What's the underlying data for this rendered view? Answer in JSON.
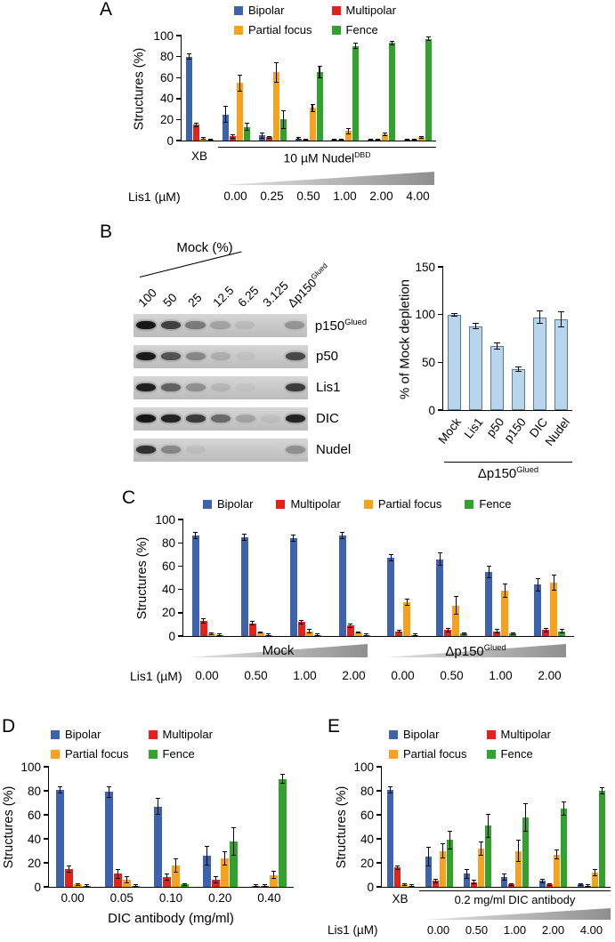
{
  "colors": {
    "bipolar": "#3E63AD",
    "multipolar": "#E2231B",
    "partial_focus": "#F6A21C",
    "fence": "#33A12E",
    "depletion_fill": "#B9D5EC",
    "depletion_border": "#4F7DA9"
  },
  "legend_items": [
    {
      "key": "bipolar",
      "label": "Bipolar"
    },
    {
      "key": "multipolar",
      "label": "Multipolar"
    },
    {
      "key": "partial_focus",
      "label": "Partial focus"
    },
    {
      "key": "fence",
      "label": "Fence"
    }
  ],
  "panels": {
    "a": {
      "letter": "A",
      "ylabel": "Structures (%)",
      "xb": "XB",
      "treatment_base": "10 µM Nudel",
      "treatment_sup": "DBD",
      "xaxis": "Lis1 (µM)"
    },
    "b": {
      "letter": "B",
      "ylabel": "% of Mock depletion",
      "bracket_base": "Δp150",
      "bracket_sup": "Glued",
      "blot": {
        "title": "Mock (%)",
        "lanes": [
          "100",
          "50",
          "25",
          "12.5",
          "6.25",
          "3.125"
        ],
        "delta_base": "Δp150",
        "delta_sup": "Glued",
        "rows": [
          {
            "label": "p150",
            "sup": "Glued",
            "bands": [
              0.95,
              0.72,
              0.42,
              0.2,
              0.08,
              0.02,
              0.28
            ]
          },
          {
            "label": "p50",
            "bands": [
              0.92,
              0.62,
              0.35,
              0.14,
              0.04,
              0,
              0.68
            ]
          },
          {
            "label": "Lis1",
            "bands": [
              0.9,
              0.55,
              0.3,
              0.1,
              0.03,
              0,
              0.75
            ]
          },
          {
            "label": "DIC",
            "bands": [
              0.95,
              0.88,
              0.75,
              0.5,
              0.2,
              0.05,
              0.88
            ]
          },
          {
            "label": "Nudel",
            "bands": [
              0.8,
              0.35,
              0.06,
              0,
              0,
              0,
              0.3
            ]
          }
        ]
      }
    },
    "c": {
      "letter": "C",
      "ylabel": "Structures (%)",
      "mock_label": "Mock",
      "delta_base": "Δp150",
      "delta_sup": "Glued",
      "xaxis": "Lis1 (µM)"
    },
    "d": {
      "letter": "D",
      "ylabel": "Structures (%)",
      "xaxis": "DIC antibody (mg/ml)"
    },
    "e": {
      "letter": "E",
      "ylabel": "Structures (%)",
      "xb": "XB",
      "treatment": "0.2 mg/ml DIC antibody",
      "xaxis": "Lis1 (µM)"
    }
  },
  "chart_data": [
    {
      "id": "panel-a",
      "type": "bar",
      "title": "",
      "xlabel": "Lis1 (µM)",
      "ylabel": "Structures (%)",
      "ylim": [
        0,
        100
      ],
      "yticks": [
        0,
        20,
        40,
        60,
        80,
        100
      ],
      "categories": [
        "XB",
        "0.00",
        "0.25",
        "0.50",
        "1.00",
        "2.00",
        "4.00"
      ],
      "sections": [
        {
          "label": "XB",
          "categories": [
            0,
            0
          ]
        },
        {
          "label": "10 µM NudelDBD",
          "categories": [
            1,
            6
          ]
        }
      ],
      "legend_position": "top",
      "series": [
        {
          "name": "Bipolar",
          "color_key": "bipolar",
          "values": [
            80,
            25,
            5,
            2,
            1,
            1,
            1
          ],
          "errors": [
            3,
            8,
            3,
            1,
            1,
            1,
            1
          ]
        },
        {
          "name": "Multipolar",
          "color_key": "multipolar",
          "values": [
            15,
            4,
            3,
            1,
            1,
            1,
            1
          ],
          "errors": [
            2,
            2,
            1,
            1,
            1,
            1,
            1
          ]
        },
        {
          "name": "Partial focus",
          "color_key": "partial_focus",
          "values": [
            2,
            55,
            65,
            31,
            9,
            6,
            3
          ],
          "errors": [
            1,
            8,
            10,
            4,
            3,
            2,
            1
          ]
        },
        {
          "name": "Fence",
          "color_key": "fence",
          "values": [
            1,
            13,
            20,
            65,
            90,
            93,
            97
          ],
          "errors": [
            1,
            4,
            9,
            6,
            3,
            2,
            2
          ]
        }
      ]
    },
    {
      "id": "panel-b",
      "type": "bar",
      "title": "",
      "xlabel": "",
      "ylabel": "% of Mock depletion",
      "ylim": [
        0,
        150
      ],
      "yticks": [
        0,
        50,
        100,
        150
      ],
      "categories": [
        "Mock",
        "Lis1",
        "p50",
        "p150",
        "DIC",
        "Nudel"
      ],
      "sections": [
        {
          "label": "Mock",
          "categories": [
            0,
            0
          ]
        },
        {
          "label": "Δp150Glued",
          "categories": [
            1,
            5
          ]
        }
      ],
      "series": [
        {
          "name": "% of Mock depletion",
          "color_key": "depletion_fill",
          "border_key": "depletion_border",
          "values": [
            100,
            88,
            67,
            43,
            97,
            95
          ],
          "errors": [
            2,
            3,
            4,
            3,
            7,
            8
          ]
        }
      ]
    },
    {
      "id": "panel-c",
      "type": "bar",
      "title": "",
      "xlabel": "Lis1 (µM)",
      "ylabel": "Structures (%)",
      "ylim": [
        0,
        100
      ],
      "yticks": [
        0,
        20,
        40,
        60,
        80,
        100
      ],
      "categories": [
        "0.00",
        "0.50",
        "1.00",
        "2.00",
        "0.00",
        "0.50",
        "1.00",
        "2.00"
      ],
      "sections": [
        {
          "label": "Mock",
          "categories": [
            0,
            3
          ]
        },
        {
          "label": "Δp150Glued",
          "categories": [
            4,
            7
          ]
        }
      ],
      "legend_position": "top",
      "series": [
        {
          "name": "Bipolar",
          "color_key": "bipolar",
          "values": [
            86,
            85,
            84,
            86,
            67,
            66,
            55,
            44
          ],
          "errors": [
            3,
            3,
            3,
            3,
            3,
            6,
            5,
            6
          ]
        },
        {
          "name": "Multipolar",
          "color_key": "multipolar",
          "values": [
            13,
            11,
            12,
            9,
            4,
            5,
            4,
            5
          ],
          "errors": [
            2,
            2,
            2,
            2,
            1,
            2,
            2,
            2
          ]
        },
        {
          "name": "Partial focus",
          "color_key": "partial_focus",
          "values": [
            2,
            3,
            4,
            3,
            29,
            26,
            39,
            46
          ],
          "errors": [
            1,
            1,
            2,
            1,
            3,
            8,
            6,
            7
          ]
        },
        {
          "name": "Fence",
          "color_key": "fence",
          "values": [
            1,
            1,
            1,
            1,
            1,
            2,
            2,
            4
          ],
          "errors": [
            1,
            1,
            1,
            1,
            1,
            1,
            1,
            2
          ]
        }
      ]
    },
    {
      "id": "panel-d",
      "type": "bar",
      "title": "",
      "xlabel": "DIC antibody (mg/ml)",
      "ylabel": "Structures (%)",
      "ylim": [
        0,
        100
      ],
      "yticks": [
        0,
        20,
        40,
        60,
        80,
        100
      ],
      "categories": [
        "0.00",
        "0.05",
        "0.10",
        "0.20",
        "0.40"
      ],
      "legend_position": "top",
      "series": [
        {
          "name": "Bipolar",
          "color_key": "bipolar",
          "values": [
            81,
            79,
            67,
            26,
            1
          ],
          "errors": [
            3,
            5,
            7,
            8,
            1
          ]
        },
        {
          "name": "Multipolar",
          "color_key": "multipolar",
          "values": [
            15,
            11,
            8,
            6,
            1
          ],
          "errors": [
            3,
            4,
            3,
            3,
            1
          ]
        },
        {
          "name": "Partial focus",
          "color_key": "partial_focus",
          "values": [
            2,
            6,
            18,
            24,
            10
          ],
          "errors": [
            1,
            3,
            6,
            6,
            3
          ]
        },
        {
          "name": "Fence",
          "color_key": "fence",
          "values": [
            1,
            1,
            2,
            38,
            90
          ],
          "errors": [
            1,
            1,
            1,
            12,
            4
          ]
        }
      ]
    },
    {
      "id": "panel-e",
      "type": "bar",
      "title": "",
      "xlabel": "Lis1 (µM)",
      "ylabel": "Structures (%)",
      "ylim": [
        0,
        100
      ],
      "yticks": [
        0,
        20,
        40,
        60,
        80,
        100
      ],
      "categories": [
        "XB",
        "0.00",
        "0.50",
        "1.00",
        "2.00",
        "4.00"
      ],
      "sections": [
        {
          "label": "XB",
          "categories": [
            0,
            0
          ]
        },
        {
          "label": "0.2 mg/ml DIC antibody",
          "categories": [
            1,
            5
          ]
        }
      ],
      "legend_position": "top",
      "series": [
        {
          "name": "Bipolar",
          "color_key": "bipolar",
          "values": [
            81,
            25,
            11,
            8,
            5,
            2
          ],
          "errors": [
            3,
            8,
            4,
            3,
            2,
            1
          ]
        },
        {
          "name": "Multipolar",
          "color_key": "multipolar",
          "values": [
            16,
            5,
            4,
            2,
            2,
            1
          ],
          "errors": [
            2,
            2,
            2,
            1,
            1,
            1
          ]
        },
        {
          "name": "Partial focus",
          "color_key": "partial_focus",
          "values": [
            2,
            30,
            32,
            30,
            27,
            12
          ],
          "errors": [
            1,
            6,
            6,
            9,
            4,
            3
          ]
        },
        {
          "name": "Fence",
          "color_key": "fence",
          "values": [
            1,
            39,
            51,
            58,
            65,
            80
          ],
          "errors": [
            1,
            8,
            10,
            12,
            6,
            3
          ]
        }
      ]
    }
  ]
}
